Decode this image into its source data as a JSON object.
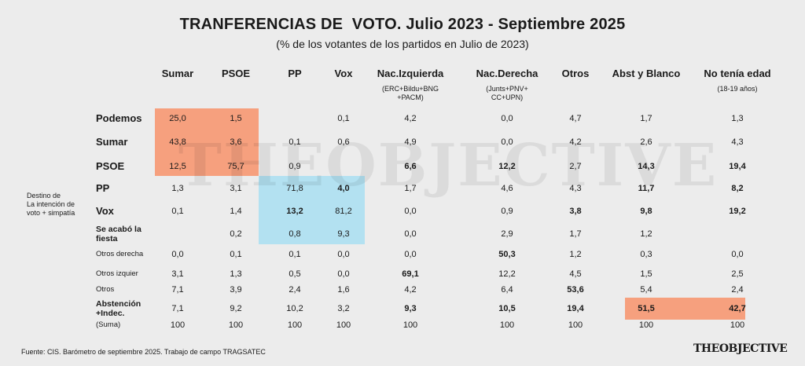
{
  "chart_data": {
    "type": "table",
    "title": "TRANFERENCIAS DE  VOTO. Julio 2023 - Septiembre 2025",
    "subtitle": "(% de los votantes de los partidos en Julio de 2023)",
    "side_label": [
      "Destino de",
      "La intención de",
      "voto + simpatía"
    ],
    "columns": [
      {
        "label": "Sumar",
        "sub": ""
      },
      {
        "label": "PSOE",
        "sub": ""
      },
      {
        "label": "PP",
        "sub": ""
      },
      {
        "label": "Vox",
        "sub": ""
      },
      {
        "label": "Nac.Izquierda",
        "sub": [
          "(ERC+Bildu+BNG",
          "+PACM)"
        ]
      },
      {
        "label": "Nac.Derecha",
        "sub": [
          "(Junts+PNV+",
          "CC+UPN)"
        ]
      },
      {
        "label": "Otros",
        "sub": ""
      },
      {
        "label": "Abst y Blanco",
        "sub": ""
      },
      {
        "label": "No tenía edad",
        "sub": [
          "(18-19 años)"
        ]
      }
    ],
    "rows": [
      {
        "label": [
          "Podemos"
        ],
        "style": "big",
        "values": [
          "25,0",
          "1,5",
          "",
          "0,1",
          "4,2",
          "0,0",
          "4,7",
          "1,7",
          "1,3"
        ],
        "bold": []
      },
      {
        "label": [
          "Sumar"
        ],
        "style": "big",
        "values": [
          "43,8",
          "3,6",
          "0,1",
          "0,6",
          "4,9",
          "0,0",
          "4,2",
          "2,6",
          "4,3"
        ],
        "bold": []
      },
      {
        "label": [
          "PSOE"
        ],
        "style": "big",
        "values": [
          "12,5",
          "75,7",
          "0,9",
          "",
          "6,6",
          "12,2",
          "2,7",
          "14,3",
          "19,4"
        ],
        "bold": [
          4,
          5,
          7,
          8
        ]
      },
      {
        "label": [
          "PP"
        ],
        "style": "big",
        "values": [
          "1,3",
          "3,1",
          "71,8",
          "4,0",
          "1,7",
          "4,6",
          "4,3",
          "11,7",
          "8,2"
        ],
        "bold": [
          3,
          7,
          8
        ]
      },
      {
        "label": [
          "Vox"
        ],
        "style": "big",
        "values": [
          "0,1",
          "1,4",
          "13,2",
          "81,2",
          "0,0",
          "0,9",
          "3,8",
          "9,8",
          "19,2"
        ],
        "bold": [
          2,
          6,
          7,
          8
        ]
      },
      {
        "label": [
          "Se acabó la",
          "fiesta"
        ],
        "style": "med",
        "values": [
          "",
          "0,2",
          "0,8",
          "9,3",
          "0,0",
          "2,9",
          "1,7",
          "1,2",
          ""
        ],
        "bold": []
      },
      {
        "label": [
          "Otros derecha"
        ],
        "style": "small",
        "values": [
          "0,0",
          "0,1",
          "0,1",
          "0,0",
          "0,0",
          "50,3",
          "1,2",
          "0,3",
          "0,0"
        ],
        "bold": [
          5
        ]
      },
      {
        "label": [
          "Otros izquier"
        ],
        "style": "small",
        "values": [
          "3,1",
          "1,3",
          "0,5",
          "0,0",
          "69,1",
          "12,2",
          "4,5",
          "1,5",
          "2,5"
        ],
        "bold": [
          4
        ]
      },
      {
        "label": [
          "Otros"
        ],
        "style": "small",
        "values": [
          "7,1",
          "3,9",
          "2,4",
          "1,6",
          "4,2",
          "6,4",
          "53,6",
          "5,4",
          "2,4"
        ],
        "bold": [
          6
        ]
      },
      {
        "label": [
          "Abstención",
          "+Indec."
        ],
        "style": "med",
        "values": [
          "7,1",
          "9,2",
          "10,2",
          "3,2",
          "9,3",
          "10,5",
          "19,4",
          "51,5",
          "42,7"
        ],
        "bold": [
          4,
          5,
          6,
          7,
          8
        ]
      },
      {
        "label": [
          "(Suma)"
        ],
        "style": "small",
        "values": [
          "100",
          "100",
          "100",
          "100",
          "100",
          "100",
          "100",
          "100",
          "100"
        ],
        "bold": []
      }
    ],
    "highlight_colors": {
      "orange": "#f6a07e",
      "blue": "#b3e1f1"
    }
  },
  "watermark": "THEOBJECTIVE",
  "source": "Fuente: CIS. Barómetro de septiembre 2025. Trabajo de campo TRAGSATEC",
  "logo": "THEOBJECTIVE"
}
